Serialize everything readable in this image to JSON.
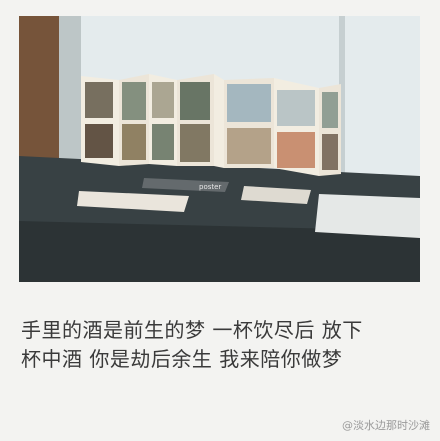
{
  "caption": {
    "line1": "手里的酒是前生的梦 一杯饮尽后 放下",
    "line2": "杯中酒 你是劫后余生 我来陪你做梦"
  },
  "watermark": "@淡水边那时沙滩",
  "photo": {
    "book_label": "poster",
    "colors": {
      "window": "#dfe8ea",
      "wall": "#6e4a2e",
      "desk": "#2c3639",
      "paper": "#f2ece0"
    }
  }
}
